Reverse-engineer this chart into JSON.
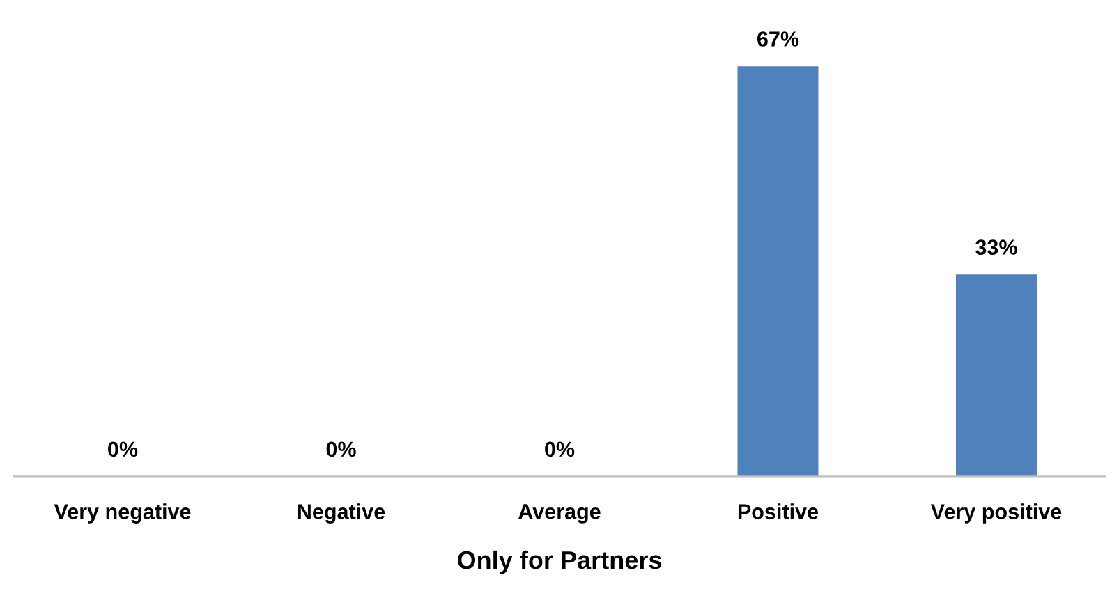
{
  "chart_data": {
    "type": "bar",
    "categories": [
      "Very negative",
      "Negative",
      "Average",
      "Positive",
      "Very positive"
    ],
    "values": [
      0,
      0,
      0,
      67,
      33
    ],
    "value_labels": [
      "0%",
      "0%",
      "0%",
      "67%",
      "33%"
    ],
    "color": "#4f81bd",
    "xlabel": "Only for Partners",
    "grid": false
  }
}
